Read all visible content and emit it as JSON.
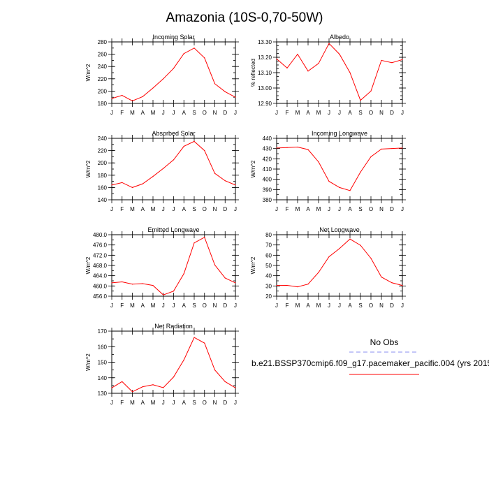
{
  "figure": {
    "title": "Amazonia (10S-0,70-50W)"
  },
  "legend": {
    "obs_label": "No Obs",
    "obs_color": "#8a8cf0",
    "model_label": "b.e21.BSSP370cmip6.f09_g17.pacemaker_pacific.004 (yrs 2015",
    "model_color": "#ff0000"
  },
  "chart_data": [
    {
      "type": "line",
      "title": "Incoming Solar",
      "xlabel": "",
      "ylabel": "W/m^2",
      "categories": [
        "J",
        "F",
        "M",
        "A",
        "M",
        "J",
        "J",
        "A",
        "S",
        "O",
        "N",
        "D",
        "J"
      ],
      "values": [
        188,
        193,
        184,
        191,
        205,
        220,
        237,
        261,
        270,
        254,
        212,
        199,
        190
      ],
      "ylim": [
        180,
        280
      ],
      "yticks": [
        "180",
        "200",
        "220",
        "240",
        "260",
        "280"
      ],
      "ytick_values": [
        180,
        200,
        220,
        240,
        260,
        280
      ],
      "minor_step": 10
    },
    {
      "type": "line",
      "title": "Albedo",
      "xlabel": "",
      "ylabel": "% reflected",
      "categories": [
        "J",
        "F",
        "M",
        "A",
        "M",
        "J",
        "J",
        "A",
        "S",
        "O",
        "N",
        "D",
        "J"
      ],
      "values": [
        13.19,
        13.13,
        13.22,
        13.11,
        13.16,
        13.29,
        13.22,
        13.1,
        12.92,
        12.98,
        13.18,
        13.165,
        13.185
      ],
      "ylim": [
        12.9,
        13.3
      ],
      "yticks": [
        "12.90",
        "13.00",
        "13.10",
        "13.20",
        "13.30"
      ],
      "ytick_values": [
        12.9,
        13.0,
        13.1,
        13.2,
        13.3
      ],
      "minor_step": 0.025
    },
    {
      "type": "line",
      "title": "Absorbed Solar",
      "xlabel": "",
      "ylabel": "W/m^2",
      "categories": [
        "J",
        "F",
        "M",
        "A",
        "M",
        "J",
        "J",
        "A",
        "S",
        "O",
        "N",
        "D",
        "J"
      ],
      "values": [
        164,
        168,
        160,
        166,
        178,
        191,
        205,
        227,
        235,
        220,
        183,
        171,
        164
      ],
      "ylim": [
        140,
        240
      ],
      "yticks": [
        "140",
        "160",
        "180",
        "200",
        "220",
        "240"
      ],
      "ytick_values": [
        140,
        160,
        180,
        200,
        220,
        240
      ],
      "minor_step": 10
    },
    {
      "type": "line",
      "title": "Incoming Longwave",
      "xlabel": "",
      "ylabel": "W/m^2",
      "categories": [
        "J",
        "F",
        "M",
        "A",
        "M",
        "J",
        "J",
        "A",
        "S",
        "O",
        "N",
        "D",
        "J"
      ],
      "values": [
        430.5,
        431,
        431.5,
        429,
        417,
        398,
        392,
        389,
        407,
        422,
        429.5,
        430,
        430.5
      ],
      "ylim": [
        380,
        440
      ],
      "yticks": [
        "380",
        "390",
        "400",
        "410",
        "420",
        "430",
        "440"
      ],
      "ytick_values": [
        380,
        390,
        400,
        410,
        420,
        430,
        440
      ],
      "minor_step": 5
    },
    {
      "type": "line",
      "title": "Emitted Longwave",
      "xlabel": "",
      "ylabel": "W/m^2",
      "categories": [
        "J",
        "F",
        "M",
        "A",
        "M",
        "J",
        "J",
        "A",
        "S",
        "O",
        "N",
        "D",
        "J"
      ],
      "values": [
        461.2,
        461.6,
        460.7,
        460.9,
        460.2,
        456.5,
        458.0,
        464.8,
        476.8,
        479.0,
        468.2,
        463.1,
        461.2
      ],
      "ylim": [
        456,
        480
      ],
      "yticks": [
        "456.0",
        "460.0",
        "464.0",
        "468.0",
        "472.0",
        "476.0",
        "480.0"
      ],
      "ytick_values": [
        456,
        460,
        464,
        468,
        472,
        476,
        480
      ],
      "minor_step": 2
    },
    {
      "type": "line",
      "title": "Net Longwave",
      "xlabel": "",
      "ylabel": "W/m^2",
      "categories": [
        "J",
        "F",
        "M",
        "A",
        "M",
        "J",
        "J",
        "A",
        "S",
        "O",
        "N",
        "D",
        "J"
      ],
      "values": [
        30.5,
        30.6,
        29.1,
        31.8,
        43.2,
        58.5,
        66.5,
        75.8,
        69.7,
        57.0,
        38.7,
        33.1,
        30.5
      ],
      "ylim": [
        20,
        80
      ],
      "yticks": [
        "20",
        "30",
        "40",
        "50",
        "60",
        "70",
        "80"
      ],
      "ytick_values": [
        20,
        30,
        40,
        50,
        60,
        70,
        80
      ],
      "minor_step": 5
    },
    {
      "type": "line",
      "title": "Net Radiation",
      "xlabel": "",
      "ylabel": "W/m^2",
      "categories": [
        "J",
        "F",
        "M",
        "A",
        "M",
        "J",
        "J",
        "A",
        "S",
        "O",
        "N",
        "D",
        "J"
      ],
      "values": [
        133.5,
        137.5,
        131.0,
        134.2,
        135.5,
        133.6,
        140.5,
        151.5,
        165.9,
        162.3,
        145.0,
        137.5,
        133.5
      ],
      "ylim": [
        130,
        170
      ],
      "yticks": [
        "130",
        "140",
        "150",
        "160",
        "170"
      ],
      "ytick_values": [
        130,
        140,
        150,
        160,
        170
      ],
      "minor_step": 5
    }
  ]
}
